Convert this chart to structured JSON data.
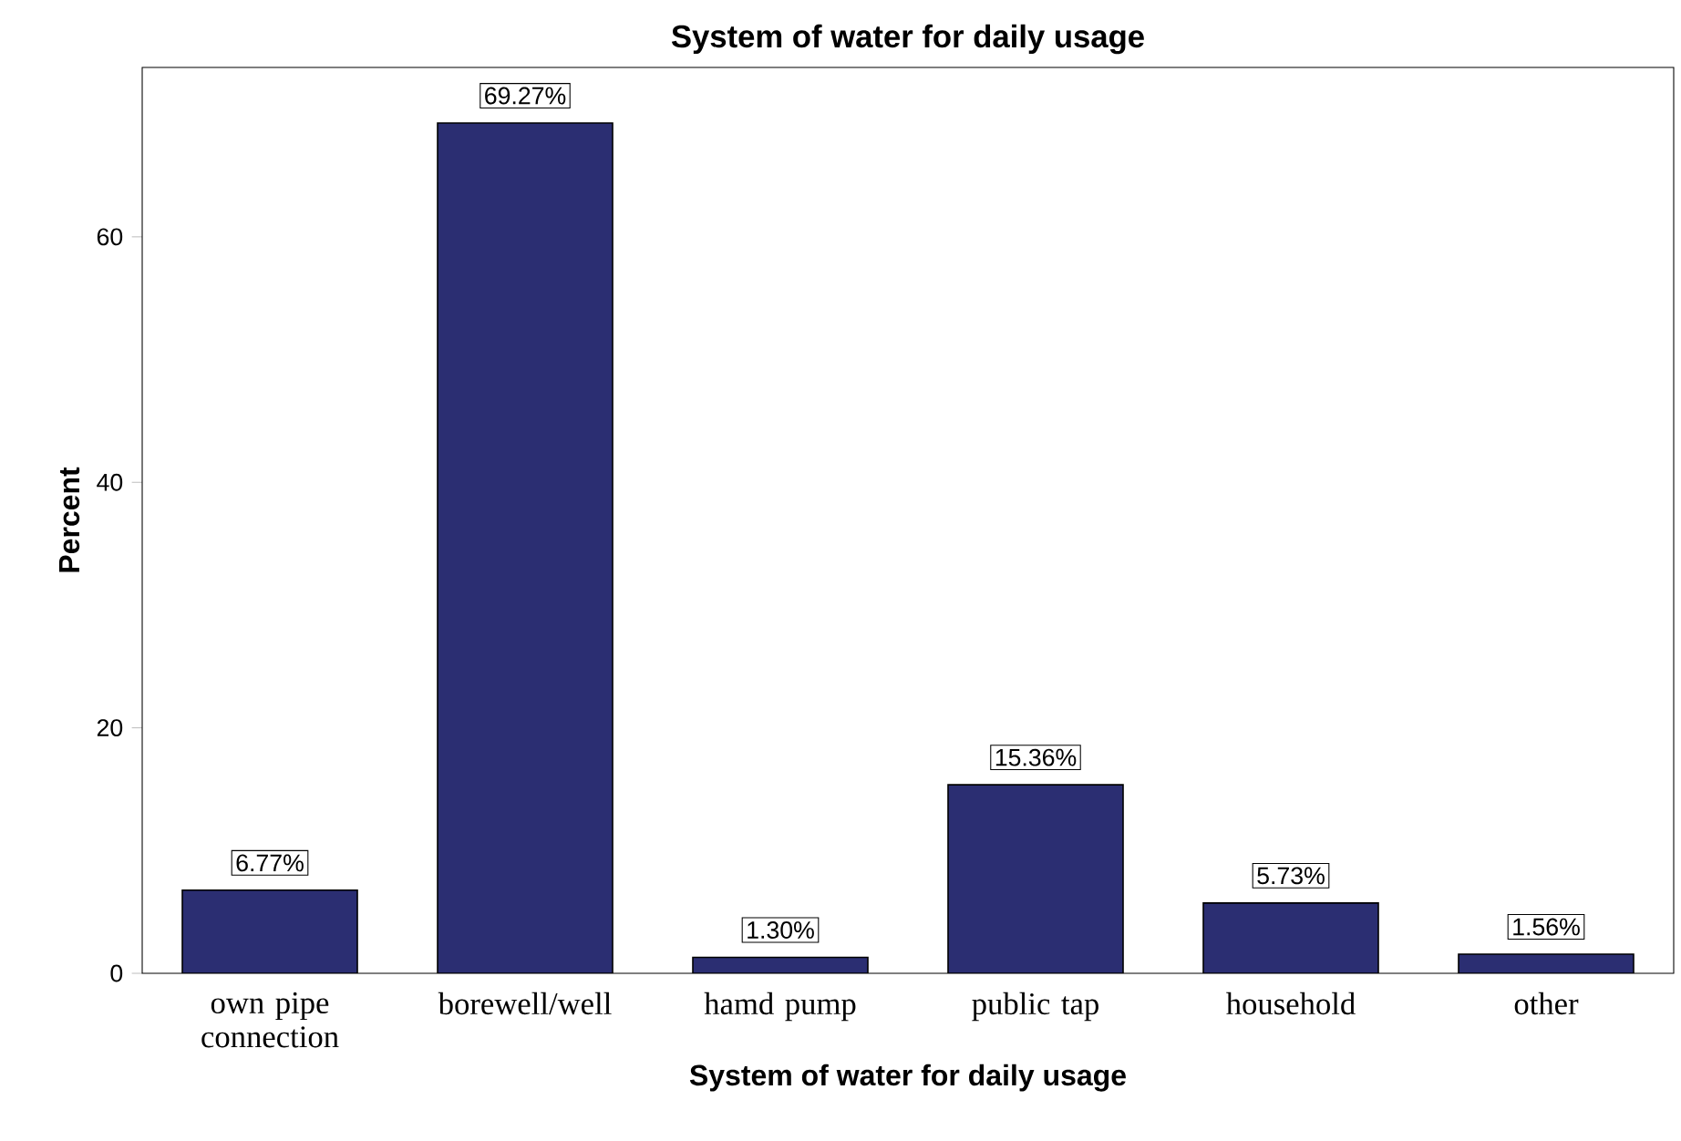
{
  "chart_data": {
    "type": "bar",
    "title": "System of water for daily usage",
    "xlabel": "System of water for daily usage",
    "ylabel": "Percent",
    "categories": [
      "own pipe connection",
      "borewell/well",
      "hamd pump",
      "public tap",
      "household",
      "other"
    ],
    "values": [
      6.77,
      69.27,
      1.3,
      15.36,
      5.73,
      1.56
    ],
    "value_labels": [
      "6.77%",
      "69.27%",
      "1.30%",
      "15.36%",
      "5.73%",
      "1.56%"
    ],
    "color": "#2b2e72",
    "ylim": [
      0,
      73.8
    ],
    "yticks": [
      0,
      20,
      40,
      60
    ],
    "grid": false
  }
}
